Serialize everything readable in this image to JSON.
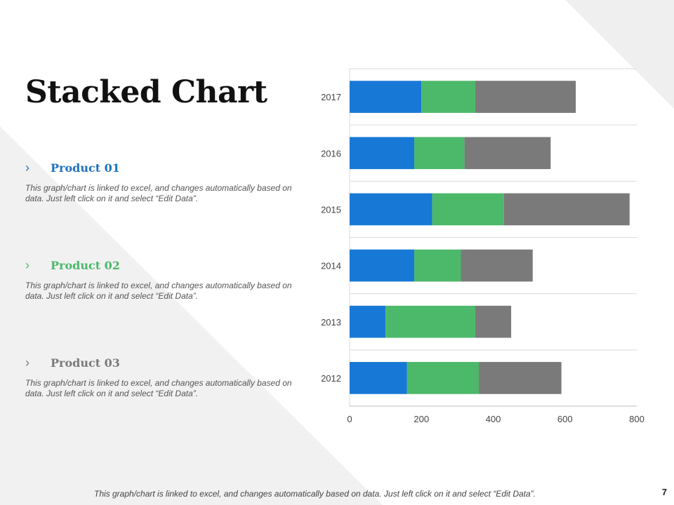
{
  "page": {
    "title": "Stacked Chart",
    "page_number": "7",
    "footer_text": "This graph/chart is linked to excel, and changes automatically  based on data. Just left click on it and select “Edit Data”."
  },
  "products": [
    {
      "bullet": "›",
      "name": "Product 01",
      "color": "#1E73BE",
      "description": "This graph/chart is linked to excel, and changes automatically based on data. Just left click on it and select “Edit Data”."
    },
    {
      "bullet": "›",
      "name": "Product 02",
      "color": "#4CB86A",
      "description": "This graph/chart is linked to excel, and changes automatically based on data. Just left click on it and select “Edit Data”."
    },
    {
      "bullet": "›",
      "name": "Product 03",
      "color": "#7A7A7A",
      "description": "This graph/chart is linked to excel, and changes automatically based on data. Just left click on it and select “Edit Data”."
    }
  ],
  "chart_data": {
    "type": "bar",
    "orientation": "horizontal",
    "stacked": true,
    "title": "",
    "xlabel": "",
    "ylabel": "",
    "categories": [
      "2017",
      "2016",
      "2015",
      "2014",
      "2013",
      "2012"
    ],
    "series": [
      {
        "name": "Product 01",
        "color": "#1878D6",
        "values": [
          200,
          180,
          230,
          180,
          100,
          160
        ]
      },
      {
        "name": "Product 02",
        "color": "#4CB86A",
        "values": [
          150,
          140,
          200,
          130,
          250,
          200
        ]
      },
      {
        "name": "Product 03",
        "color": "#7A7A7A",
        "values": [
          280,
          240,
          350,
          200,
          100,
          230
        ]
      }
    ],
    "xlim": [
      0,
      800
    ],
    "x_ticks": [
      0,
      200,
      400,
      600,
      800
    ],
    "grid": true,
    "legend": "none"
  }
}
